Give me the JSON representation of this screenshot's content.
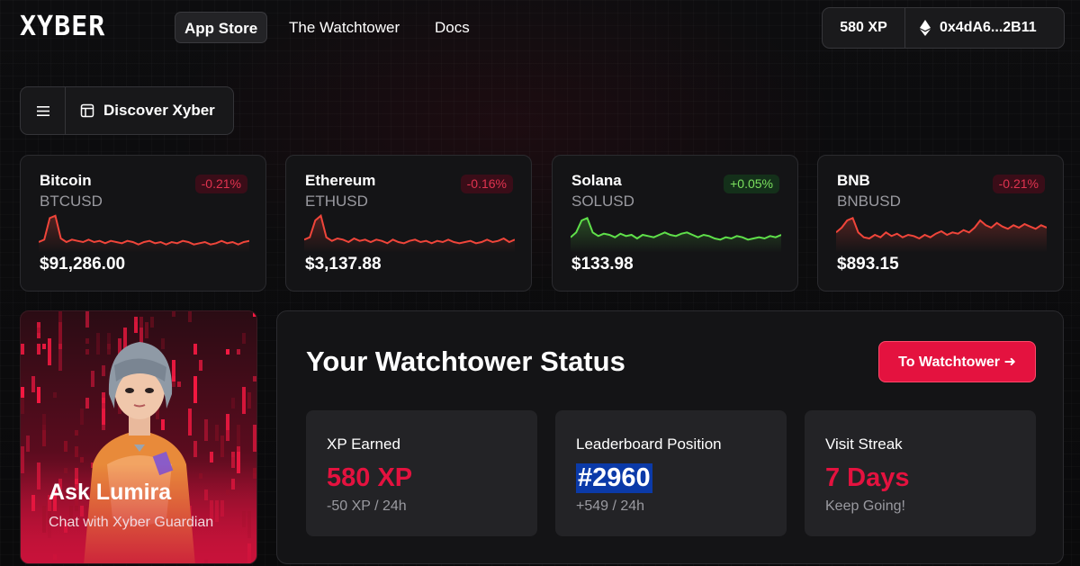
{
  "nav": {
    "logo": "XYBER",
    "links": [
      {
        "label": "App Store",
        "active": true
      },
      {
        "label": "The Watchtower",
        "active": false
      },
      {
        "label": "Docs",
        "active": false
      }
    ],
    "xp": "580 XP",
    "wallet_address": "0x4dA6...2B11"
  },
  "discover": {
    "menu_icon": "hamburger-icon",
    "label": "Discover Xyber",
    "icon": "layout-icon"
  },
  "tickers": [
    {
      "name": "Bitcoin",
      "symbol": "BTCUSD",
      "change": "-0.21%",
      "direction": "down",
      "price": "$91,286.00",
      "color": "#f0453a",
      "sparkline": [
        6,
        8,
        26,
        28,
        9,
        6,
        8,
        7,
        6,
        8,
        6,
        7,
        5,
        7,
        6,
        5,
        7,
        6,
        4,
        6,
        7,
        5,
        6,
        4,
        6,
        5,
        7,
        6,
        4,
        5,
        6,
        4,
        5,
        7,
        5,
        6,
        4,
        6,
        7
      ]
    },
    {
      "name": "Ethereum",
      "symbol": "ETHUSD",
      "change": "-0.16%",
      "direction": "down",
      "price": "$3,137.88",
      "color": "#f0453a",
      "sparkline": [
        8,
        10,
        24,
        28,
        10,
        7,
        9,
        8,
        6,
        9,
        7,
        8,
        6,
        8,
        7,
        5,
        8,
        6,
        5,
        7,
        8,
        6,
        7,
        5,
        7,
        6,
        8,
        6,
        5,
        6,
        7,
        5,
        6,
        8,
        6,
        7,
        9,
        6,
        8
      ]
    },
    {
      "name": "Solana",
      "symbol": "SOLUSD",
      "change": "+0.05%",
      "direction": "up",
      "price": "$133.98",
      "color": "#5fe04a",
      "sparkline": [
        10,
        14,
        24,
        26,
        14,
        11,
        13,
        12,
        10,
        13,
        11,
        12,
        9,
        12,
        11,
        10,
        12,
        14,
        12,
        11,
        13,
        14,
        12,
        10,
        12,
        11,
        9,
        8,
        10,
        9,
        11,
        10,
        8,
        9,
        10,
        9,
        11,
        10,
        12
      ]
    },
    {
      "name": "BNB",
      "symbol": "BNBUSD",
      "change": "-0.21%",
      "direction": "down",
      "price": "$893.15",
      "color": "#f0453a",
      "sparkline": [
        14,
        18,
        24,
        26,
        14,
        10,
        9,
        12,
        10,
        14,
        11,
        13,
        10,
        12,
        11,
        9,
        12,
        10,
        13,
        15,
        12,
        14,
        13,
        16,
        14,
        18,
        24,
        20,
        18,
        22,
        19,
        17,
        20,
        18,
        21,
        19,
        17,
        20,
        18
      ]
    }
  ],
  "lumira": {
    "title": "Ask Lumira",
    "subtitle": "Chat with Xyber Guardian"
  },
  "watchtower": {
    "title": "Your Watchtower Status",
    "button": "To Watchtower ➜",
    "stats": [
      {
        "label": "XP Earned",
        "value": "580 XP",
        "sub": "-50 XP / 24h"
      },
      {
        "label": "Leaderboard Position",
        "value": "#2960",
        "sub": "+549 / 24h"
      },
      {
        "label": "Visit Streak",
        "value": "7 Days",
        "sub": "Keep Going!"
      }
    ]
  },
  "colors": {
    "accent": "#e4123f",
    "down": "#e0334f",
    "up": "#7be05e"
  }
}
